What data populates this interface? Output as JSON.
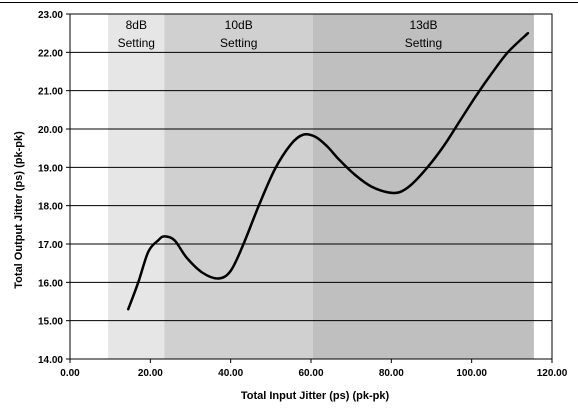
{
  "chart_data": {
    "type": "line",
    "xlabel": "Total Input Jitter (ps) (pk-pk)",
    "ylabel": "Total Output Jitter (ps) (pk-pk)",
    "xlim": [
      0,
      120
    ],
    "ylim": [
      14,
      23
    ],
    "x_ticks": [
      "0.00",
      "20.00",
      "40.00",
      "60.00",
      "80.00",
      "100.00",
      "120.00"
    ],
    "y_ticks": [
      "14.00",
      "15.00",
      "16.00",
      "17.00",
      "18.00",
      "19.00",
      "20.00",
      "21.00",
      "22.00",
      "23.00"
    ],
    "grid": "horizontal",
    "colors": {
      "line": "#000000",
      "grid": "#000000",
      "band_8db": "#e6e6e6",
      "band_10db": "#d0d0d0",
      "band_13db": "#bfbfbf"
    },
    "bands": [
      {
        "label_line1": "8dB",
        "label_line2": "Setting",
        "x_start": 9.5,
        "x_end": 23.5
      },
      {
        "label_line1": "10dB",
        "label_line2": "Setting",
        "x_start": 23.5,
        "x_end": 60.5
      },
      {
        "label_line1": "13dB",
        "label_line2": "Setting",
        "x_start": 60.5,
        "x_end": 115.5
      }
    ],
    "series": [
      {
        "x": [
          14.5,
          17,
          19.5,
          22,
          23.5,
          26,
          29,
          33,
          37,
          40,
          43,
          47,
          51,
          55,
          58,
          61,
          64,
          67,
          71,
          75,
          79,
          82,
          85,
          89,
          93,
          97,
          101,
          105,
          109,
          114
        ],
        "values": [
          15.3,
          16.0,
          16.8,
          17.1,
          17.2,
          17.1,
          16.65,
          16.25,
          16.1,
          16.3,
          16.95,
          18.0,
          18.95,
          19.6,
          19.85,
          19.8,
          19.55,
          19.2,
          18.8,
          18.5,
          18.35,
          18.35,
          18.55,
          19.0,
          19.55,
          20.2,
          20.85,
          21.45,
          22.0,
          22.5
        ]
      }
    ]
  }
}
